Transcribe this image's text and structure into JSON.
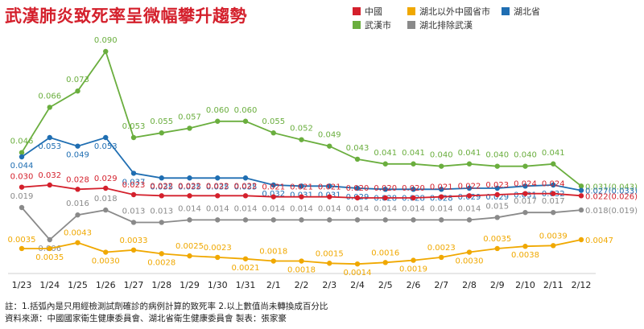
{
  "title": "武漢肺炎致死率呈微幅攀升趨勢",
  "legend": [
    {
      "name": "中國",
      "color": "#d4202c"
    },
    {
      "name": "湖北以外中國省市",
      "color": "#f0a800"
    },
    {
      "name": "湖北省",
      "color": "#1f6eb2"
    },
    {
      "name": "武漢市",
      "color": "#6aae3e"
    },
    {
      "name": "湖北排除武漢",
      "color": "#8a8a8a"
    }
  ],
  "footer": {
    "note": "註：1.括弧內是只用經檢測試劑確診的病例計算的致死率 2.以上數值尚未轉換成百分比",
    "source": "資料來源：中國國家衛生健康委員會、湖北省衛生健康委員會  製表：張家豪"
  },
  "chart_data": {
    "type": "line",
    "x": [
      "1/23",
      "1/24",
      "1/25",
      "1/26",
      "1/27",
      "1/28",
      "1/29",
      "1/30",
      "1/31",
      "2/1",
      "2/2",
      "2/3",
      "2/4",
      "2/5",
      "2/6",
      "2/7",
      "2/8",
      "2/9",
      "2/10",
      "2/11",
      "2/12"
    ],
    "series": [
      {
        "name": "武漢市",
        "color": "#6aae3e",
        "values": [
          0.046,
          0.066,
          0.073,
          0.09,
          0.053,
          0.055,
          0.057,
          0.06,
          0.06,
          0.055,
          0.052,
          0.049,
          0.043,
          0.041,
          0.041,
          0.04,
          0.041,
          0.04,
          0.04,
          0.041,
          0.031
        ],
        "labels": [
          "0.046",
          "0.066",
          "0.073",
          "0.090",
          "0.053",
          "0.055",
          "0.057",
          "0.060",
          "0.060",
          "0.055",
          "0.052",
          "0.049",
          "0.043",
          "0.041",
          "0.041",
          "0.040",
          "0.041",
          "0.040",
          "0.040",
          "0.041",
          "0.031(0.043)"
        ]
      },
      {
        "name": "湖北省",
        "color": "#1f6eb2",
        "values": [
          0.044,
          0.053,
          0.049,
          0.053,
          0.037,
          0.035,
          0.035,
          0.035,
          0.035,
          0.032,
          0.031,
          0.031,
          0.029,
          0.028,
          0.028,
          0.028,
          0.029,
          0.029,
          0.031,
          0.032,
          0.027
        ],
        "labels": [
          "0.044",
          "0.053",
          "0.049",
          "0.053",
          "0.037",
          "0.035",
          "0.035",
          "0.035",
          "0.035",
          "0.032",
          "0.031",
          "0.031",
          "0.029",
          "0.028",
          "0.028",
          "0.028",
          "0.029",
          "0.029",
          "0.031",
          "0.032",
          "0.027(0.033)"
        ]
      },
      {
        "name": "中國",
        "color": "#d4202c",
        "values": [
          0.03,
          0.032,
          0.028,
          0.029,
          0.023,
          0.022,
          0.022,
          0.022,
          0.022,
          0.021,
          0.021,
          0.021,
          0.02,
          0.02,
          0.02,
          0.021,
          0.022,
          0.023,
          0.024,
          0.024,
          0.022
        ],
        "labels": [
          "0.030",
          "0.032",
          "0.028",
          "0.029",
          "0.023",
          "0.022",
          "0.022",
          "0.022",
          "0.022",
          "0.021",
          "0.021",
          "0.021",
          "0.020",
          "0.020",
          "0.020",
          "0.021",
          "0.022",
          "0.023",
          "0.024",
          "0.024",
          "0.022(0.026)"
        ]
      },
      {
        "name": "湖北排除武漢",
        "color": "#8a8a8a",
        "values": [
          0.019,
          0.006,
          0.016,
          0.018,
          0.013,
          0.013,
          0.014,
          0.014,
          0.014,
          0.014,
          0.014,
          0.014,
          0.014,
          0.014,
          0.014,
          0.014,
          0.014,
          0.015,
          0.017,
          0.017,
          0.018
        ],
        "labels": [
          "0.019",
          "0.006",
          "0.016",
          "0.018",
          "0.013",
          "0.013",
          "0.014",
          "0.014",
          "0.014",
          "0.014",
          "0.014",
          "0.014",
          "0.014",
          "0.014",
          "0.014",
          "0.014",
          "0.014",
          "0.015",
          "0.017",
          "0.017",
          "0.018(0.019)"
        ]
      },
      {
        "name": "湖北以外中國省市",
        "color": "#f0a800",
        "values": [
          0.0035,
          0.0035,
          0.0043,
          0.003,
          0.0033,
          0.0028,
          0.0025,
          0.0023,
          0.0021,
          0.0018,
          0.0018,
          0.0015,
          0.0014,
          0.0016,
          0.0019,
          0.0023,
          0.003,
          0.0035,
          0.0038,
          0.0039,
          0.0047
        ],
        "labels": [
          "0.0035",
          "0.0035",
          "0.0043",
          "0.0030",
          "0.0033",
          "0.0028",
          "0.0025",
          "0.0023",
          "0.0021",
          "0.0018",
          "0.0018",
          "0.0015",
          "0.0014",
          "0.0016",
          "0.0019",
          "0.0023",
          "0.0030",
          "0.0035",
          "0.0038",
          "0.0039",
          "0.0047"
        ]
      }
    ],
    "title": "武漢肺炎致死率呈微幅攀升趨勢",
    "xlabel": "",
    "ylabel": "",
    "grid": false,
    "legend_position": "top-right"
  }
}
